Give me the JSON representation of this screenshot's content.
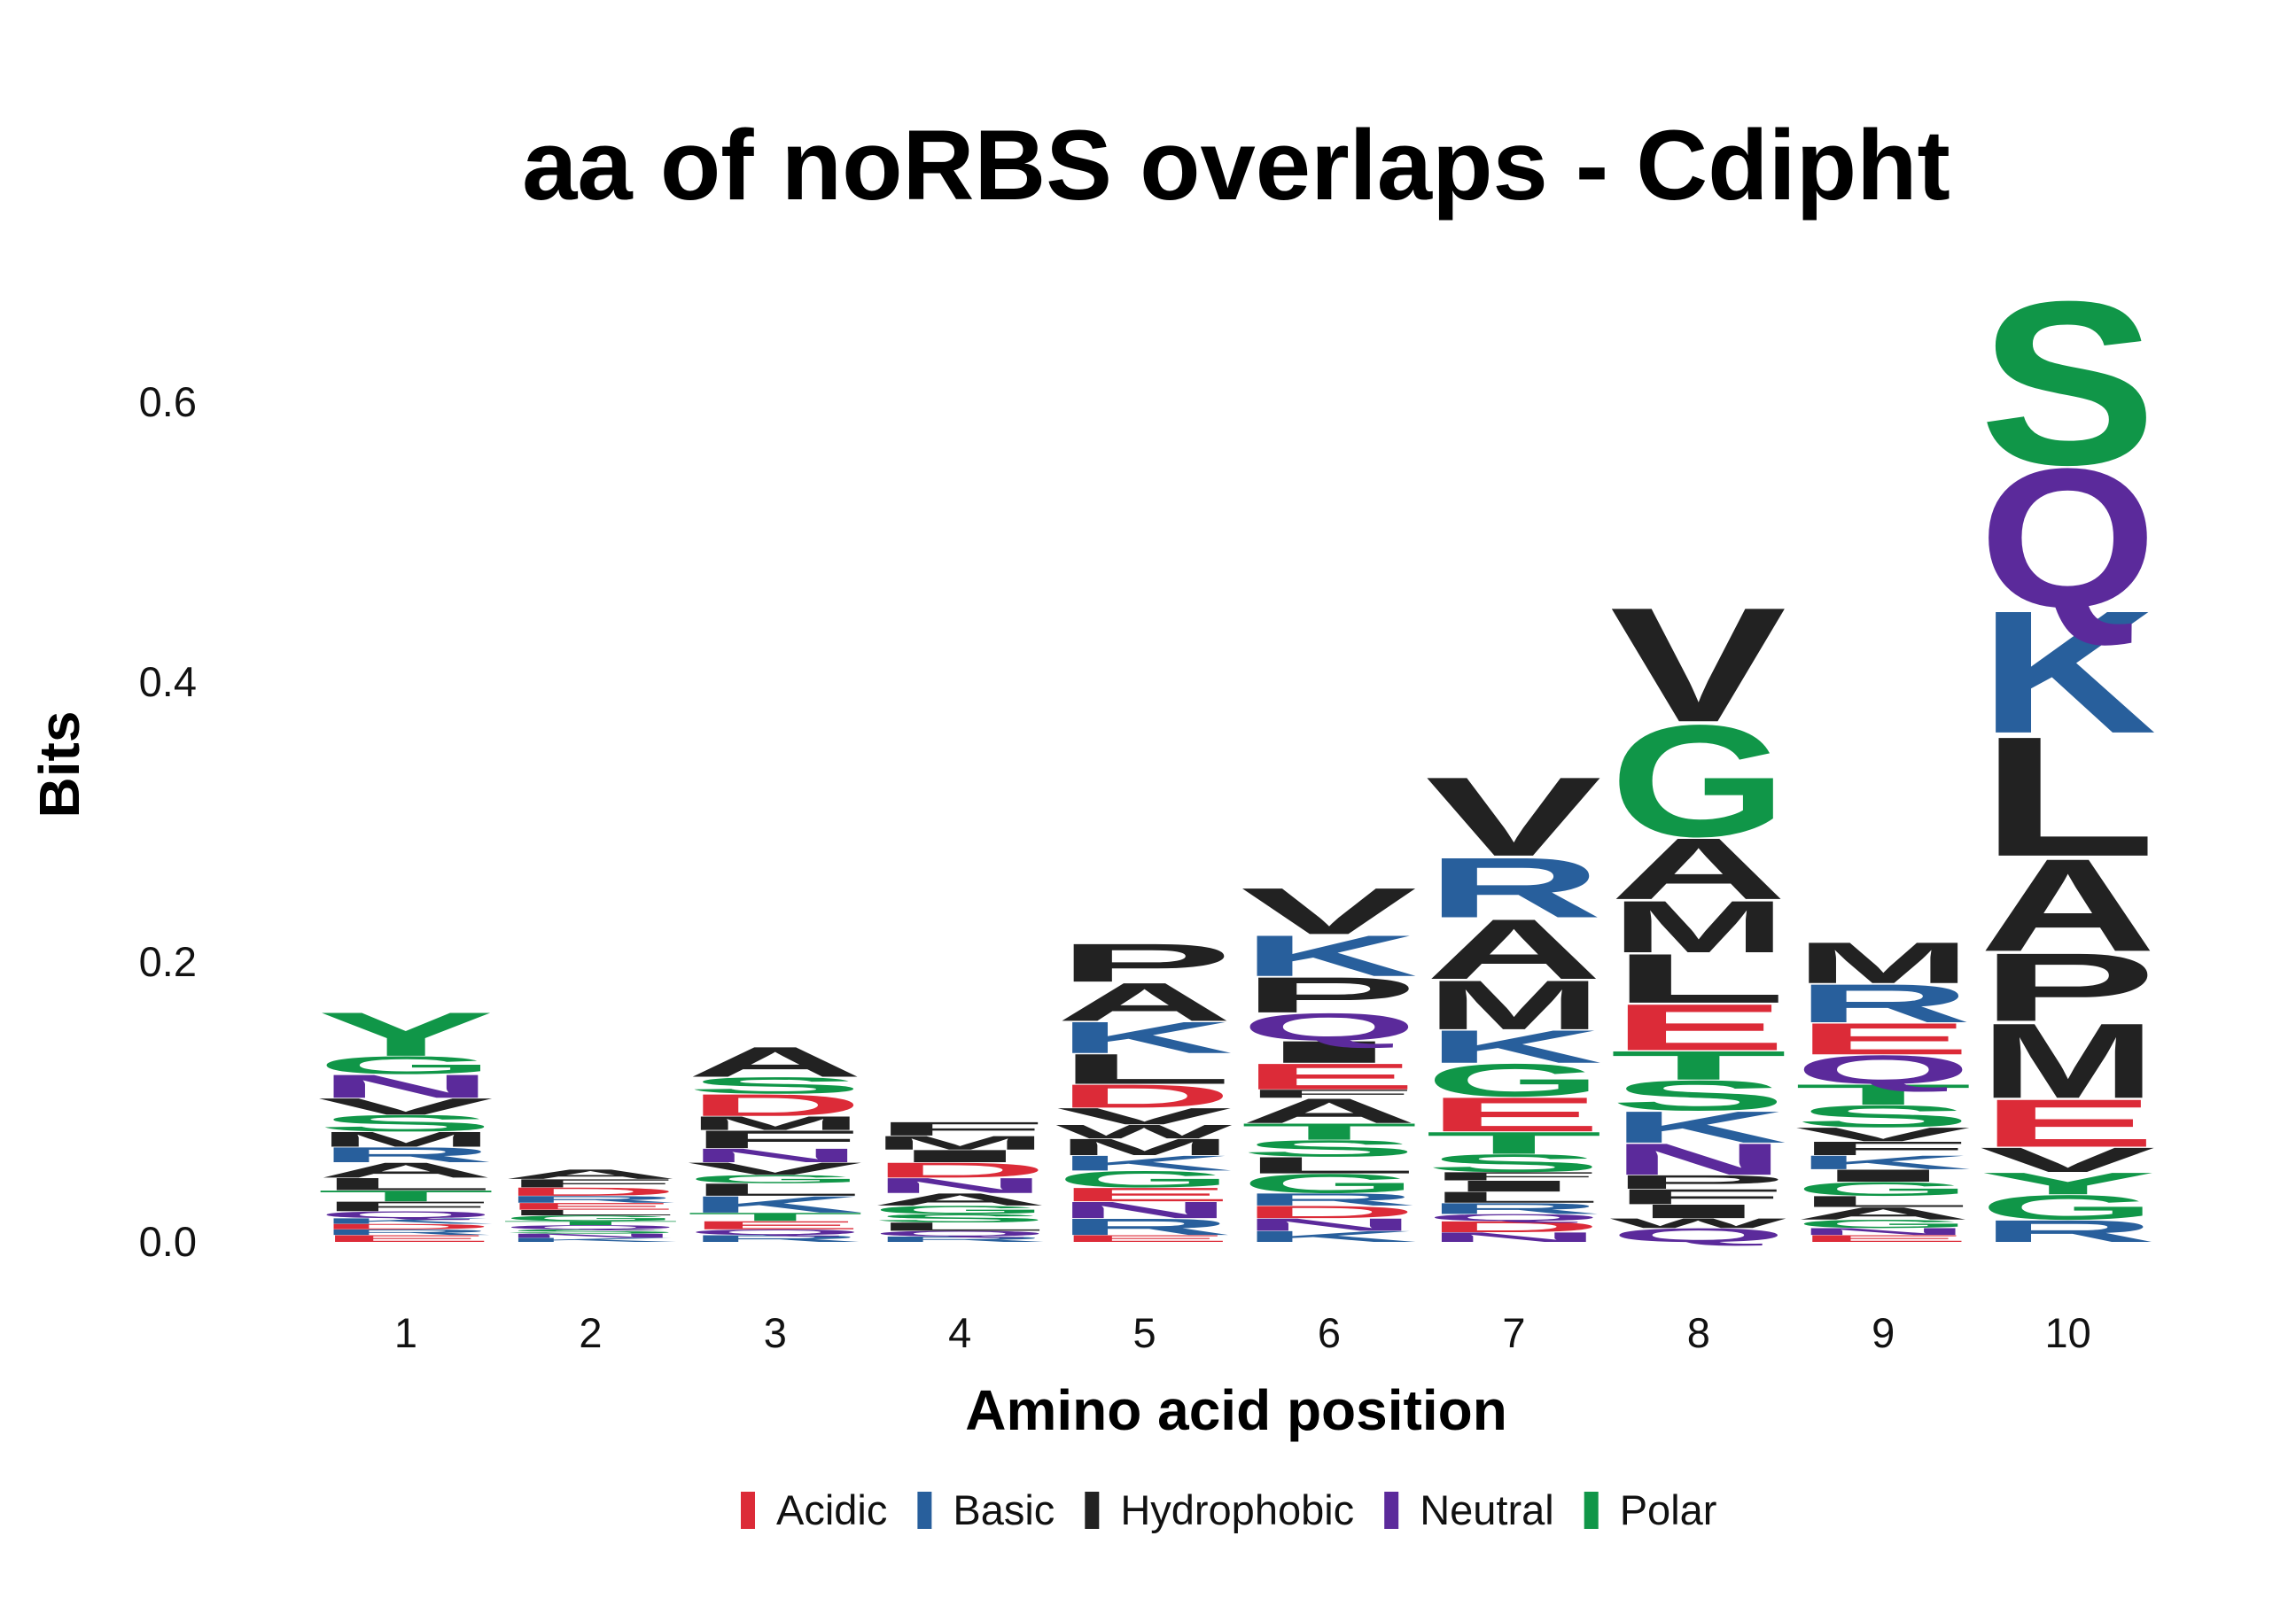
{
  "chart_data": {
    "type": "sequence-logo",
    "title": "aa of noRBS overlaps - Cdipht",
    "xlabel": "Amino acid position",
    "ylabel": "Bits",
    "ylim": [
      0,
      0.66
    ],
    "yticks": [
      0.0,
      0.2,
      0.4,
      0.6
    ],
    "ytick_labels": [
      "0.0",
      "0.2",
      "0.4",
      "0.6"
    ],
    "grid": false,
    "legend_position": "bottom",
    "legend": [
      {
        "name": "Acidic",
        "color": "#dc2b38"
      },
      {
        "name": "Basic",
        "color": "#285f9c"
      },
      {
        "name": "Hydrophobic",
        "color": "#222222"
      },
      {
        "name": "Neutral",
        "color": "#5b2a9b"
      },
      {
        "name": "Polar",
        "color": "#109648"
      }
    ],
    "class_colors": {
      "Acidic": "#dc2b38",
      "Basic": "#285f9c",
      "Hydrophobic": "#222222",
      "Neutral": "#5b2a9b",
      "Polar": "#109648"
    },
    "positions": [
      {
        "x": 1,
        "letters": [
          {
            "aa": "E",
            "bits": 0.005,
            "class": "Acidic"
          },
          {
            "aa": "R",
            "bits": 0.004,
            "class": "Basic"
          },
          {
            "aa": "D",
            "bits": 0.004,
            "class": "Acidic"
          },
          {
            "aa": "K",
            "bits": 0.004,
            "class": "Basic"
          },
          {
            "aa": "Q",
            "bits": 0.005,
            "class": "Neutral"
          },
          {
            "aa": "F",
            "bits": 0.007,
            "class": "Hydrophobic"
          },
          {
            "aa": "T",
            "bits": 0.008,
            "class": "Polar"
          },
          {
            "aa": "L",
            "bits": 0.009,
            "class": "Hydrophobic"
          },
          {
            "aa": "A",
            "bits": 0.011,
            "class": "Hydrophobic"
          },
          {
            "aa": "R",
            "bits": 0.011,
            "class": "Basic"
          },
          {
            "aa": "M",
            "bits": 0.011,
            "class": "Hydrophobic"
          },
          {
            "aa": "S",
            "bits": 0.012,
            "class": "Polar"
          },
          {
            "aa": "V",
            "bits": 0.012,
            "class": "Hydrophobic"
          },
          {
            "aa": "N",
            "bits": 0.017,
            "class": "Neutral"
          },
          {
            "aa": "G",
            "bits": 0.013,
            "class": "Polar"
          },
          {
            "aa": "Y",
            "bits": 0.032,
            "class": "Polar"
          }
        ]
      },
      {
        "x": 2,
        "letters": [
          {
            "aa": "K",
            "bits": 0.003,
            "class": "Basic"
          },
          {
            "aa": "N",
            "bits": 0.003,
            "class": "Neutral"
          },
          {
            "aa": "S",
            "bits": 0.003,
            "class": "Polar"
          },
          {
            "aa": "Q",
            "bits": 0.003,
            "class": "Neutral"
          },
          {
            "aa": "T",
            "bits": 0.003,
            "class": "Polar"
          },
          {
            "aa": "G",
            "bits": 0.004,
            "class": "Polar"
          },
          {
            "aa": "L",
            "bits": 0.004,
            "class": "Hydrophobic"
          },
          {
            "aa": "E",
            "bits": 0.005,
            "class": "Acidic"
          },
          {
            "aa": "R",
            "bits": 0.005,
            "class": "Basic"
          },
          {
            "aa": "D",
            "bits": 0.006,
            "class": "Acidic"
          },
          {
            "aa": "F",
            "bits": 0.006,
            "class": "Hydrophobic"
          },
          {
            "aa": "A",
            "bits": 0.007,
            "class": "Hydrophobic"
          }
        ]
      },
      {
        "x": 3,
        "letters": [
          {
            "aa": "R",
            "bits": 0.005,
            "class": "Basic"
          },
          {
            "aa": "Q",
            "bits": 0.004,
            "class": "Neutral"
          },
          {
            "aa": "E",
            "bits": 0.006,
            "class": "Acidic"
          },
          {
            "aa": "T",
            "bits": 0.006,
            "class": "Polar"
          },
          {
            "aa": "K",
            "bits": 0.012,
            "class": "Basic"
          },
          {
            "aa": "L",
            "bits": 0.009,
            "class": "Hydrophobic"
          },
          {
            "aa": "G",
            "bits": 0.006,
            "class": "Polar"
          },
          {
            "aa": "V",
            "bits": 0.009,
            "class": "Hydrophobic"
          },
          {
            "aa": "N",
            "bits": 0.01,
            "class": "Neutral"
          },
          {
            "aa": "F",
            "bits": 0.013,
            "class": "Hydrophobic"
          },
          {
            "aa": "M",
            "bits": 0.01,
            "class": "Hydrophobic"
          },
          {
            "aa": "D",
            "bits": 0.016,
            "class": "Acidic"
          },
          {
            "aa": "S",
            "bits": 0.012,
            "class": "Polar"
          },
          {
            "aa": "A",
            "bits": 0.022,
            "class": "Hydrophobic"
          }
        ]
      },
      {
        "x": 4,
        "letters": [
          {
            "aa": "R",
            "bits": 0.004,
            "class": "Basic"
          },
          {
            "aa": "Q",
            "bits": 0.004,
            "class": "Neutral"
          },
          {
            "aa": "L",
            "bits": 0.006,
            "class": "Hydrophobic"
          },
          {
            "aa": "S",
            "bits": 0.006,
            "class": "Polar"
          },
          {
            "aa": "G",
            "bits": 0.006,
            "class": "Polar"
          },
          {
            "aa": "A",
            "bits": 0.009,
            "class": "Hydrophobic"
          },
          {
            "aa": "N",
            "bits": 0.011,
            "class": "Neutral"
          },
          {
            "aa": "D",
            "bits": 0.011,
            "class": "Acidic"
          },
          {
            "aa": "I",
            "bits": 0.009,
            "class": "Hydrophobic"
          },
          {
            "aa": "M",
            "bits": 0.01,
            "class": "Hydrophobic"
          },
          {
            "aa": "F",
            "bits": 0.01,
            "class": "Hydrophobic"
          }
        ]
      },
      {
        "x": 5,
        "letters": [
          {
            "aa": "E",
            "bits": 0.005,
            "class": "Acidic"
          },
          {
            "aa": "R",
            "bits": 0.012,
            "class": "Basic"
          },
          {
            "aa": "N",
            "bits": 0.012,
            "class": "Neutral"
          },
          {
            "aa": "E",
            "bits": 0.01,
            "class": "Acidic"
          },
          {
            "aa": "G",
            "bits": 0.012,
            "class": "Polar"
          },
          {
            "aa": "K",
            "bits": 0.011,
            "class": "Basic"
          },
          {
            "aa": "M",
            "bits": 0.012,
            "class": "Hydrophobic"
          },
          {
            "aa": "W",
            "bits": 0.01,
            "class": "Hydrophobic"
          },
          {
            "aa": "V",
            "bits": 0.012,
            "class": "Hydrophobic"
          },
          {
            "aa": "D",
            "bits": 0.017,
            "class": "Acidic"
          },
          {
            "aa": "L",
            "bits": 0.022,
            "class": "Hydrophobic"
          },
          {
            "aa": "K",
            "bits": 0.023,
            "class": "Basic"
          },
          {
            "aa": "A",
            "bits": 0.028,
            "class": "Hydrophobic"
          },
          {
            "aa": "P",
            "bits": 0.028,
            "class": "Hydrophobic"
          }
        ]
      },
      {
        "x": 6,
        "letters": [
          {
            "aa": "K",
            "bits": 0.008,
            "class": "Basic"
          },
          {
            "aa": "N",
            "bits": 0.009,
            "class": "Neutral"
          },
          {
            "aa": "D",
            "bits": 0.009,
            "class": "Acidic"
          },
          {
            "aa": "R",
            "bits": 0.009,
            "class": "Basic"
          },
          {
            "aa": "G",
            "bits": 0.014,
            "class": "Polar"
          },
          {
            "aa": "L",
            "bits": 0.012,
            "class": "Hydrophobic"
          },
          {
            "aa": "S",
            "bits": 0.012,
            "class": "Polar"
          },
          {
            "aa": "T",
            "bits": 0.012,
            "class": "Polar"
          },
          {
            "aa": "A",
            "bits": 0.018,
            "class": "Hydrophobic"
          },
          {
            "aa": "F",
            "bits": 0.006,
            "class": "Hydrophobic"
          },
          {
            "aa": "E",
            "bits": 0.019,
            "class": "Acidic"
          },
          {
            "aa": "I",
            "bits": 0.016,
            "class": "Hydrophobic"
          },
          {
            "aa": "Q",
            "bits": 0.02,
            "class": "Neutral"
          },
          {
            "aa": "P",
            "bits": 0.026,
            "class": "Hydrophobic"
          },
          {
            "aa": "K",
            "bits": 0.03,
            "class": "Basic"
          },
          {
            "aa": "V",
            "bits": 0.034,
            "class": "Hydrophobic"
          }
        ]
      },
      {
        "x": 7,
        "letters": [
          {
            "aa": "N",
            "bits": 0.007,
            "class": "Neutral"
          },
          {
            "aa": "D",
            "bits": 0.008,
            "class": "Acidic"
          },
          {
            "aa": "Q",
            "bits": 0.005,
            "class": "Neutral"
          },
          {
            "aa": "R",
            "bits": 0.008,
            "class": "Basic"
          },
          {
            "aa": "L",
            "bits": 0.008,
            "class": "Hydrophobic"
          },
          {
            "aa": "I",
            "bits": 0.008,
            "class": "Hydrophobic"
          },
          {
            "aa": "F",
            "bits": 0.006,
            "class": "Hydrophobic"
          },
          {
            "aa": "S",
            "bits": 0.013,
            "class": "Polar"
          },
          {
            "aa": "T",
            "bits": 0.016,
            "class": "Polar"
          },
          {
            "aa": "E",
            "bits": 0.025,
            "class": "Acidic"
          },
          {
            "aa": "G",
            "bits": 0.024,
            "class": "Polar"
          },
          {
            "aa": "K",
            "bits": 0.024,
            "class": "Basic"
          },
          {
            "aa": "M",
            "bits": 0.036,
            "class": "Hydrophobic"
          },
          {
            "aa": "A",
            "bits": 0.044,
            "class": "Hydrophobic"
          },
          {
            "aa": "R",
            "bits": 0.044,
            "class": "Basic"
          },
          {
            "aa": "V",
            "bits": 0.058,
            "class": "Hydrophobic"
          }
        ]
      },
      {
        "x": 8,
        "letters": [
          {
            "aa": "Q",
            "bits": 0.01,
            "class": "Neutral"
          },
          {
            "aa": "W",
            "bits": 0.007,
            "class": "Hydrophobic"
          },
          {
            "aa": "I",
            "bits": 0.01,
            "class": "Hydrophobic"
          },
          {
            "aa": "F",
            "bits": 0.011,
            "class": "Hydrophobic"
          },
          {
            "aa": "P",
            "bits": 0.01,
            "class": "Hydrophobic"
          },
          {
            "aa": "N",
            "bits": 0.023,
            "class": "Neutral"
          },
          {
            "aa": "K",
            "bits": 0.023,
            "class": "Basic"
          },
          {
            "aa": "S",
            "bits": 0.022,
            "class": "Polar"
          },
          {
            "aa": "T",
            "bits": 0.021,
            "class": "Polar"
          },
          {
            "aa": "E",
            "bits": 0.034,
            "class": "Acidic"
          },
          {
            "aa": "L",
            "bits": 0.036,
            "class": "Hydrophobic"
          },
          {
            "aa": "M",
            "bits": 0.038,
            "class": "Hydrophobic"
          },
          {
            "aa": "A",
            "bits": 0.045,
            "class": "Hydrophobic"
          },
          {
            "aa": "G",
            "bits": 0.082,
            "class": "Polar"
          },
          {
            "aa": "V",
            "bits": 0.084,
            "class": "Hydrophobic"
          }
        ]
      },
      {
        "x": 9,
        "letters": [
          {
            "aa": "E",
            "bits": 0.005,
            "class": "Acidic"
          },
          {
            "aa": "N",
            "bits": 0.005,
            "class": "Neutral"
          },
          {
            "aa": "G",
            "bits": 0.006,
            "class": "Polar"
          },
          {
            "aa": "A",
            "bits": 0.009,
            "class": "Hydrophobic"
          },
          {
            "aa": "L",
            "bits": 0.008,
            "class": "Hydrophobic"
          },
          {
            "aa": "G",
            "bits": 0.01,
            "class": "Polar"
          },
          {
            "aa": "I",
            "bits": 0.009,
            "class": "Hydrophobic"
          },
          {
            "aa": "K",
            "bits": 0.01,
            "class": "Basic"
          },
          {
            "aa": "F",
            "bits": 0.01,
            "class": "Hydrophobic"
          },
          {
            "aa": "V",
            "bits": 0.01,
            "class": "Hydrophobic"
          },
          {
            "aa": "S",
            "bits": 0.016,
            "class": "Polar"
          },
          {
            "aa": "T",
            "bits": 0.015,
            "class": "Polar"
          },
          {
            "aa": "Q",
            "bits": 0.021,
            "class": "Neutral"
          },
          {
            "aa": "E",
            "bits": 0.023,
            "class": "Acidic"
          },
          {
            "aa": "R",
            "bits": 0.028,
            "class": "Basic"
          },
          {
            "aa": "M",
            "bits": 0.03,
            "class": "Hydrophobic"
          }
        ]
      },
      {
        "x": 10,
        "letters": [
          {
            "aa": "R",
            "bits": 0.016,
            "class": "Basic"
          },
          {
            "aa": "G",
            "bits": 0.018,
            "class": "Polar"
          },
          {
            "aa": "Y",
            "bits": 0.016,
            "class": "Polar"
          },
          {
            "aa": "V",
            "bits": 0.018,
            "class": "Hydrophobic"
          },
          {
            "aa": "E",
            "bits": 0.035,
            "class": "Acidic"
          },
          {
            "aa": "M",
            "bits": 0.055,
            "class": "Hydrophobic"
          },
          {
            "aa": "P",
            "bits": 0.05,
            "class": "Hydrophobic"
          },
          {
            "aa": "A",
            "bits": 0.068,
            "class": "Hydrophobic"
          },
          {
            "aa": "L",
            "bits": 0.088,
            "class": "Hydrophobic"
          },
          {
            "aa": "K",
            "bits": 0.09,
            "class": "Basic"
          },
          {
            "aa": "Q",
            "bits": 0.102,
            "class": "Neutral"
          },
          {
            "aa": "S",
            "bits": 0.12,
            "class": "Polar"
          }
        ]
      }
    ]
  }
}
